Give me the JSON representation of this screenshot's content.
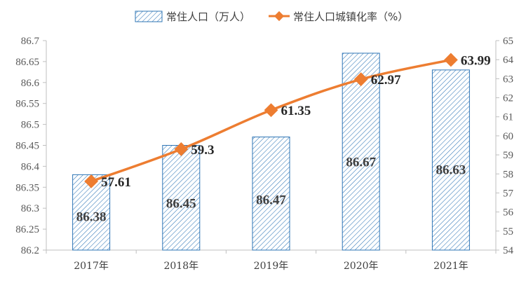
{
  "chart_data": {
    "type": "bar",
    "categories": [
      "2017年",
      "2018年",
      "2019年",
      "2020年",
      "2021年"
    ],
    "series": [
      {
        "name": "常住人口（万人）",
        "type": "bar",
        "axis": "left",
        "values": [
          86.38,
          86.45,
          86.47,
          86.67,
          86.63
        ],
        "labels": [
          "86.38",
          "86.45",
          "86.47",
          "86.67",
          "86.63"
        ]
      },
      {
        "name": "常住人口城镇化率（%）",
        "type": "line",
        "axis": "right",
        "values": [
          57.61,
          59.3,
          61.35,
          62.97,
          63.99
        ],
        "labels": [
          "57.61",
          "59.3",
          "61.35",
          "62.97",
          "63.99"
        ]
      }
    ],
    "left_axis": {
      "ylim": [
        86.2,
        86.7
      ],
      "ticks": [
        "86.2",
        "86.25",
        "86.3",
        "86.35",
        "86.4",
        "86.45",
        "86.5",
        "86.55",
        "86.6",
        "86.65",
        "86.7"
      ]
    },
    "right_axis": {
      "ylim": [
        54,
        65
      ],
      "ticks": [
        "54",
        "55",
        "56",
        "57",
        "58",
        "59",
        "60",
        "61",
        "62",
        "63",
        "64",
        "65"
      ]
    },
    "legend_position": "top-center",
    "grid": false,
    "colors": {
      "bar": "#2e75b6",
      "line": "#ed7d31",
      "axis": "#bfbfbf"
    }
  }
}
